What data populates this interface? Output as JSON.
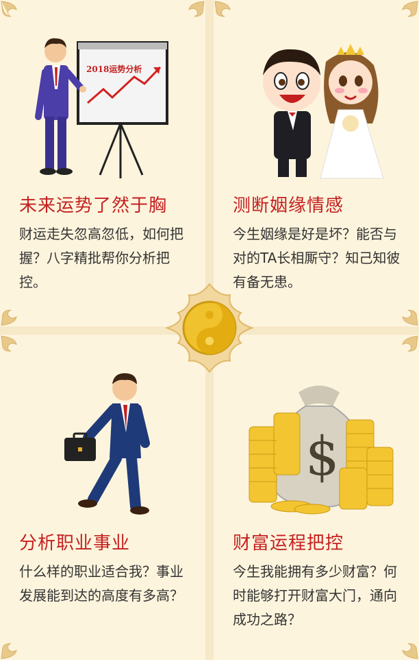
{
  "cards": [
    {
      "title": "未来运势了然于胸",
      "desc": "财运走失忽高忽低，如何把握？八字精批帮你分析把控。"
    },
    {
      "title": "测断姻缘情感",
      "desc": "今生姻缘是好是坏？能否与对的TA长相厮守？知己知彼有备无患。"
    },
    {
      "title": "分析职业事业",
      "desc": "什么样的职业适合我？事业发展能到达的高度有多高？"
    },
    {
      "title": "财富运程把控",
      "desc": "今生我能拥有多少财富？何时能够打开财富大门，通向成功之路？"
    }
  ],
  "board_text": "2018运势分析",
  "money_symbol": "$",
  "colors": {
    "title": "#c41f1f",
    "card_bg": "#fdf4dd",
    "ornament": "#e8c98a",
    "gold": "#f3c531"
  }
}
